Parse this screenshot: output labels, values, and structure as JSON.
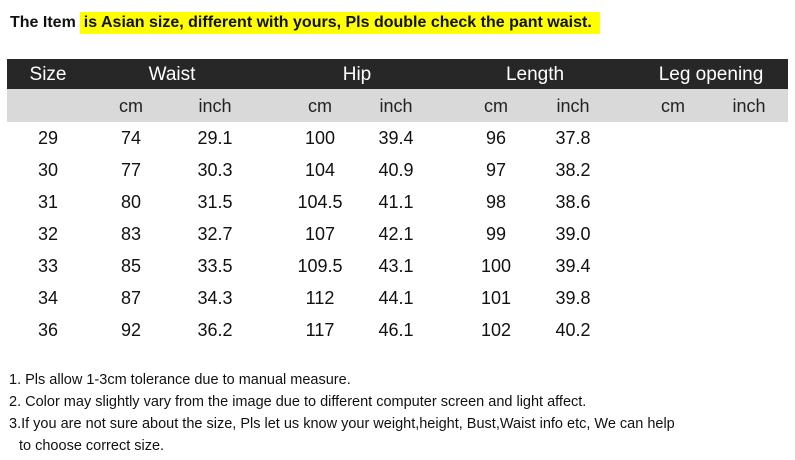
{
  "title": {
    "prefix": "The Item",
    "highlight": "is Asian size, different with yours, Pls double check the pant waist.",
    "highlight_color": "#ffff00"
  },
  "table": {
    "header_bg": "#272727",
    "subheader_bg": "#d9d9d9",
    "headers": [
      "Size",
      "Waist",
      "Hip",
      "Length",
      "Leg opening"
    ],
    "units": [
      "cm",
      "inch",
      "cm",
      "inch",
      "cm",
      "inch",
      "cm",
      "inch"
    ],
    "rows": [
      [
        "29",
        "74",
        "29.1",
        "100",
        "39.4",
        "96",
        "37.8",
        "",
        ""
      ],
      [
        "30",
        "77",
        "30.3",
        "104",
        "40.9",
        "97",
        "38.2",
        "",
        ""
      ],
      [
        "31",
        "80",
        "31.5",
        "104.5",
        "41.1",
        "98",
        "38.6",
        "",
        ""
      ],
      [
        "32",
        "83",
        "32.7",
        "107",
        "42.1",
        "99",
        "39.0",
        "",
        ""
      ],
      [
        "33",
        "85",
        "33.5",
        "109.5",
        "43.1",
        "100",
        "39.4",
        "",
        ""
      ],
      [
        "34",
        "87",
        "34.3",
        "112",
        "44.1",
        "101",
        "39.8",
        "",
        ""
      ],
      [
        "36",
        "92",
        "36.2",
        "117",
        "46.1",
        "102",
        "40.2",
        "",
        ""
      ]
    ]
  },
  "notes": [
    "1. Pls allow 1-3cm tolerance due to manual measure.",
    "2. Color may slightly vary from the image due to different computer screen and light affect.",
    "3.If you are not sure about the size, Pls let us know your weight,height, Bust,Waist info etc, We can help",
    "to choose correct size."
  ]
}
